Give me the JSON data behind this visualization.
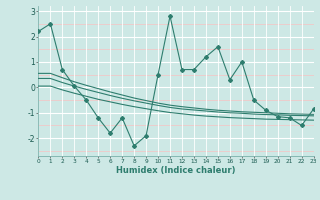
{
  "xlabel": "Humidex (Indice chaleur)",
  "x": [
    0,
    1,
    2,
    3,
    4,
    5,
    6,
    7,
    8,
    9,
    10,
    11,
    12,
    13,
    14,
    15,
    16,
    17,
    18,
    19,
    20,
    21,
    22,
    23
  ],
  "line1": [
    2.2,
    2.5,
    0.7,
    0.05,
    -0.5,
    -1.2,
    -1.8,
    -1.2,
    -2.3,
    -1.9,
    0.5,
    2.8,
    0.7,
    0.7,
    1.2,
    1.6,
    0.3,
    1.0,
    -0.5,
    -0.9,
    -1.15,
    -1.2,
    -1.5,
    -0.85
  ],
  "line2": [
    0.55,
    0.55,
    0.38,
    0.22,
    0.08,
    -0.05,
    -0.18,
    -0.3,
    -0.42,
    -0.52,
    -0.62,
    -0.7,
    -0.76,
    -0.81,
    -0.86,
    -0.9,
    -0.93,
    -0.96,
    -0.98,
    -1.0,
    -1.02,
    -1.04,
    -1.05,
    -1.06
  ],
  "line3": [
    0.35,
    0.35,
    0.19,
    0.05,
    -0.08,
    -0.2,
    -0.32,
    -0.43,
    -0.53,
    -0.62,
    -0.71,
    -0.79,
    -0.85,
    -0.89,
    -0.93,
    -0.97,
    -1.0,
    -1.02,
    -1.05,
    -1.07,
    -1.08,
    -1.1,
    -1.11,
    -1.12
  ],
  "line4": [
    0.05,
    0.05,
    -0.1,
    -0.23,
    -0.35,
    -0.47,
    -0.57,
    -0.67,
    -0.76,
    -0.84,
    -0.92,
    -0.99,
    -1.04,
    -1.09,
    -1.13,
    -1.16,
    -1.19,
    -1.21,
    -1.23,
    -1.25,
    -1.26,
    -1.27,
    -1.28,
    -1.29
  ],
  "bg_color": "#cde8e5",
  "line_color": "#2e7d6e",
  "grid_color_white": "#ffffff",
  "grid_color_pink": "#f0c8c8",
  "ylim": [
    -2.7,
    3.2
  ],
  "xlim": [
    0,
    23
  ],
  "yticks": [
    -2,
    -1,
    0,
    1,
    2,
    3
  ],
  "xticks": [
    0,
    1,
    2,
    3,
    4,
    5,
    6,
    7,
    8,
    9,
    10,
    11,
    12,
    13,
    14,
    15,
    16,
    17,
    18,
    19,
    20,
    21,
    22,
    23
  ]
}
